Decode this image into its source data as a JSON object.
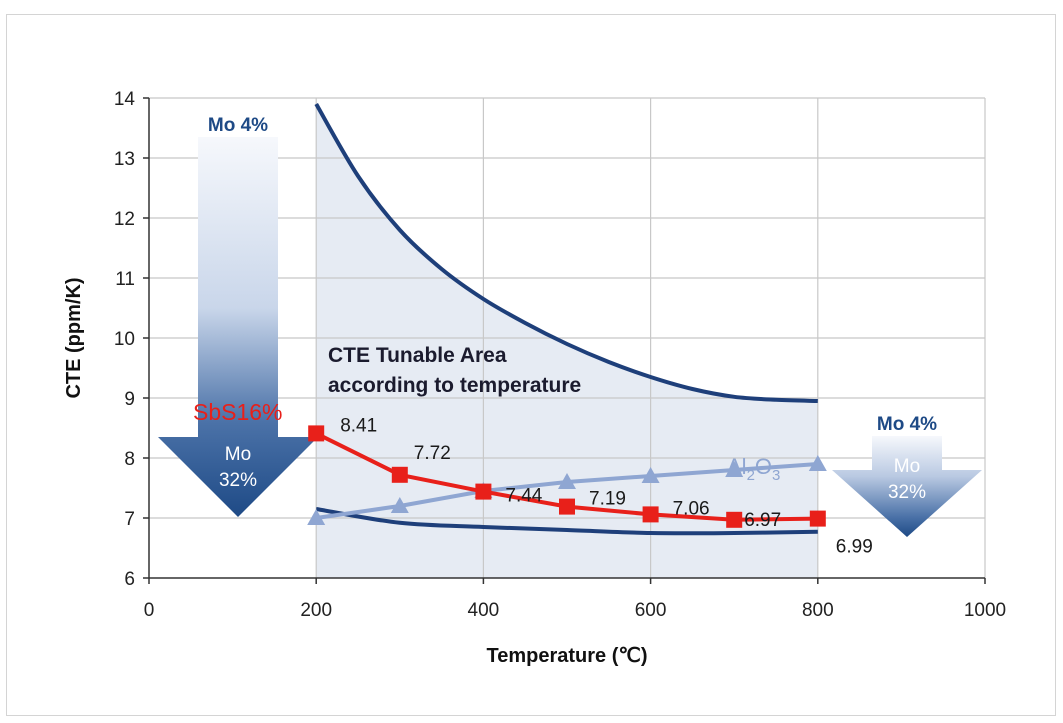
{
  "chart_data": {
    "type": "line",
    "title": "",
    "xlabel": "Temperature (℃)",
    "ylabel": "CTE  (ppm/K)",
    "xlim": [
      0,
      1000
    ],
    "ylim": [
      6,
      14
    ],
    "xticks": [
      0,
      200,
      400,
      600,
      800,
      1000
    ],
    "yticks": [
      6,
      7,
      8,
      9,
      10,
      11,
      12,
      13,
      14
    ],
    "grid": true,
    "series": [
      {
        "name": "SbS16%",
        "color": "#e8201a",
        "marker": "square",
        "x": [
          200,
          300,
          400,
          500,
          600,
          700,
          800
        ],
        "y": [
          8.41,
          7.72,
          7.44,
          7.19,
          7.06,
          6.97,
          6.99
        ],
        "labels": [
          "8.41",
          "7.72",
          "7.44",
          "7.19",
          "7.06",
          "6.97",
          "6.99"
        ]
      },
      {
        "name_main": "Al",
        "name_sub1": "2",
        "name_mid": "O",
        "name_sub2": "3",
        "color": "#8fa6d2",
        "marker": "triangle",
        "x": [
          200,
          300,
          400,
          500,
          600,
          700,
          800
        ],
        "y": [
          7.0,
          7.2,
          7.45,
          7.6,
          7.7,
          7.8,
          7.9
        ]
      },
      {
        "role": "upper-bound",
        "color": "#1e3f7a",
        "x": [
          200,
          250,
          300,
          350,
          400,
          450,
          500,
          550,
          600,
          650,
          700,
          750,
          800
        ],
        "y": [
          13.9,
          12.7,
          11.8,
          11.15,
          10.65,
          10.25,
          9.9,
          9.6,
          9.35,
          9.15,
          9.02,
          8.97,
          8.95
        ]
      },
      {
        "role": "lower-bound",
        "color": "#1e3f7a",
        "x": [
          200,
          300,
          400,
          500,
          600,
          700,
          800
        ],
        "y": [
          7.15,
          6.92,
          6.85,
          6.8,
          6.75,
          6.75,
          6.77
        ]
      }
    ],
    "annotations": {
      "area_line1": "CTE Tunable Area",
      "area_line2": "according to temperature",
      "left_arrow_top": "Mo 4%",
      "left_arrow_bottom_1": "Mo",
      "left_arrow_bottom_2": "32%",
      "right_arrow_top": "Mo 4%",
      "right_arrow_bottom_1": "Mo",
      "right_arrow_bottom_2": "32%"
    },
    "colors": {
      "area_fill": "#e6ebf3",
      "grid": "#c8c8c8",
      "arrow_dark": "#1e4a86",
      "arrow_light": "#f4f7fc"
    }
  }
}
